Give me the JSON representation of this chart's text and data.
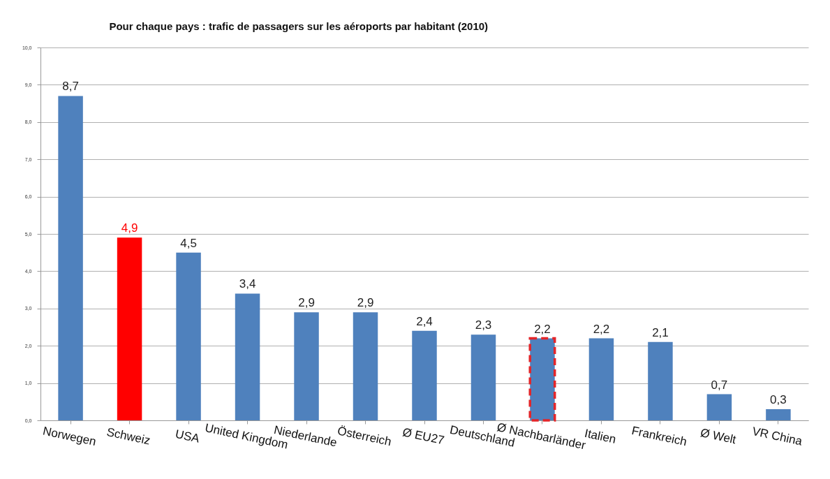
{
  "chart_data": {
    "type": "bar",
    "title": "Pour chaque pays : trafic de passagers sur les aéroports par habitant (2010)",
    "categories": [
      "Norwegen",
      "Schweiz",
      "USA",
      "United Kingdom",
      "Niederlande",
      "Österreich",
      "Ø EU27",
      "Deutschland",
      "Ø  Nachbarländer",
      "Italien",
      "Frankreich",
      "Ø Welt",
      "VR China"
    ],
    "values": [
      8.7,
      4.9,
      4.5,
      3.4,
      2.9,
      2.9,
      2.4,
      2.3,
      2.2,
      2.2,
      2.1,
      0.7,
      0.3
    ],
    "value_labels": [
      "8,7",
      "4,9",
      "4,5",
      "3,4",
      "2,9",
      "2,9",
      "2,4",
      "2,3",
      "2,2",
      "2,2",
      "2,1",
      "0,7",
      "0,3"
    ],
    "colors": [
      "#4f81bd",
      "#ff0000",
      "#4f81bd",
      "#4f81bd",
      "#4f81bd",
      "#4f81bd",
      "#4f81bd",
      "#4f81bd",
      "#4f81bd",
      "#4f81bd",
      "#4f81bd",
      "#4f81bd",
      "#4f81bd"
    ],
    "ylim": [
      0,
      10
    ],
    "yticks": [
      {
        "value": 0,
        "label": "0,0"
      },
      {
        "value": 1,
        "label": "1,0"
      },
      {
        "value": 2,
        "label": "2,0"
      },
      {
        "value": 3,
        "label": "3,0"
      },
      {
        "value": 4,
        "label": "4,0"
      },
      {
        "value": 5,
        "label": "5,0"
      },
      {
        "value": 6,
        "label": "6,0"
      },
      {
        "value": 7,
        "label": "7,0"
      },
      {
        "value": 8,
        "label": "8,0"
      },
      {
        "value": 9,
        "label": "9,0"
      },
      {
        "value": 10,
        "label": "10,0"
      }
    ],
    "grid": "y"
  }
}
